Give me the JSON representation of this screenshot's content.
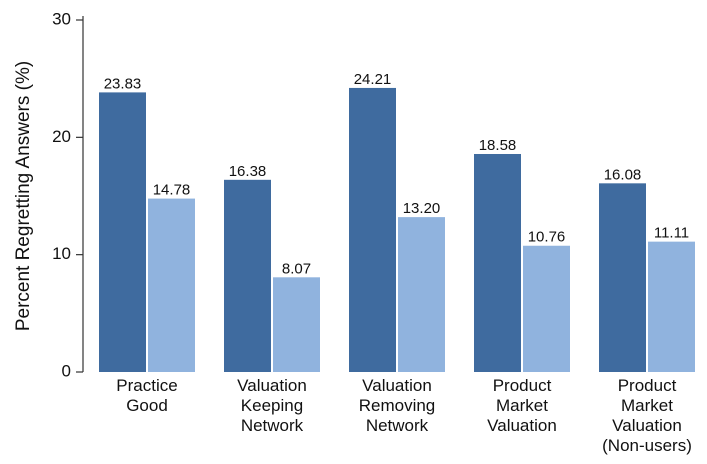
{
  "chart_data": {
    "type": "bar",
    "y_label": "Percent Regretting Answers (%)",
    "categories": [
      "Practice Good",
      "Valuation Keeping Network",
      "Valuation Removing Network",
      "Product Market Valuation",
      "Product Market Valuation (Non-users)"
    ],
    "series": [
      {
        "color": "#3f6b9f",
        "values": [
          23.83,
          16.38,
          24.21,
          18.58,
          16.08
        ],
        "value_labels": [
          "23.83",
          "16.38",
          "24.21",
          "18.58",
          "16.08"
        ]
      },
      {
        "color": "#90b3de",
        "values": [
          14.78,
          8.07,
          13.2,
          10.76,
          11.11
        ],
        "value_labels": [
          "14.78",
          "8.07",
          "13.20",
          "10.76",
          "11.11"
        ]
      }
    ],
    "ylim": [
      0,
      30
    ],
    "yticks": [
      0,
      10,
      20,
      30
    ],
    "grid": false
  }
}
